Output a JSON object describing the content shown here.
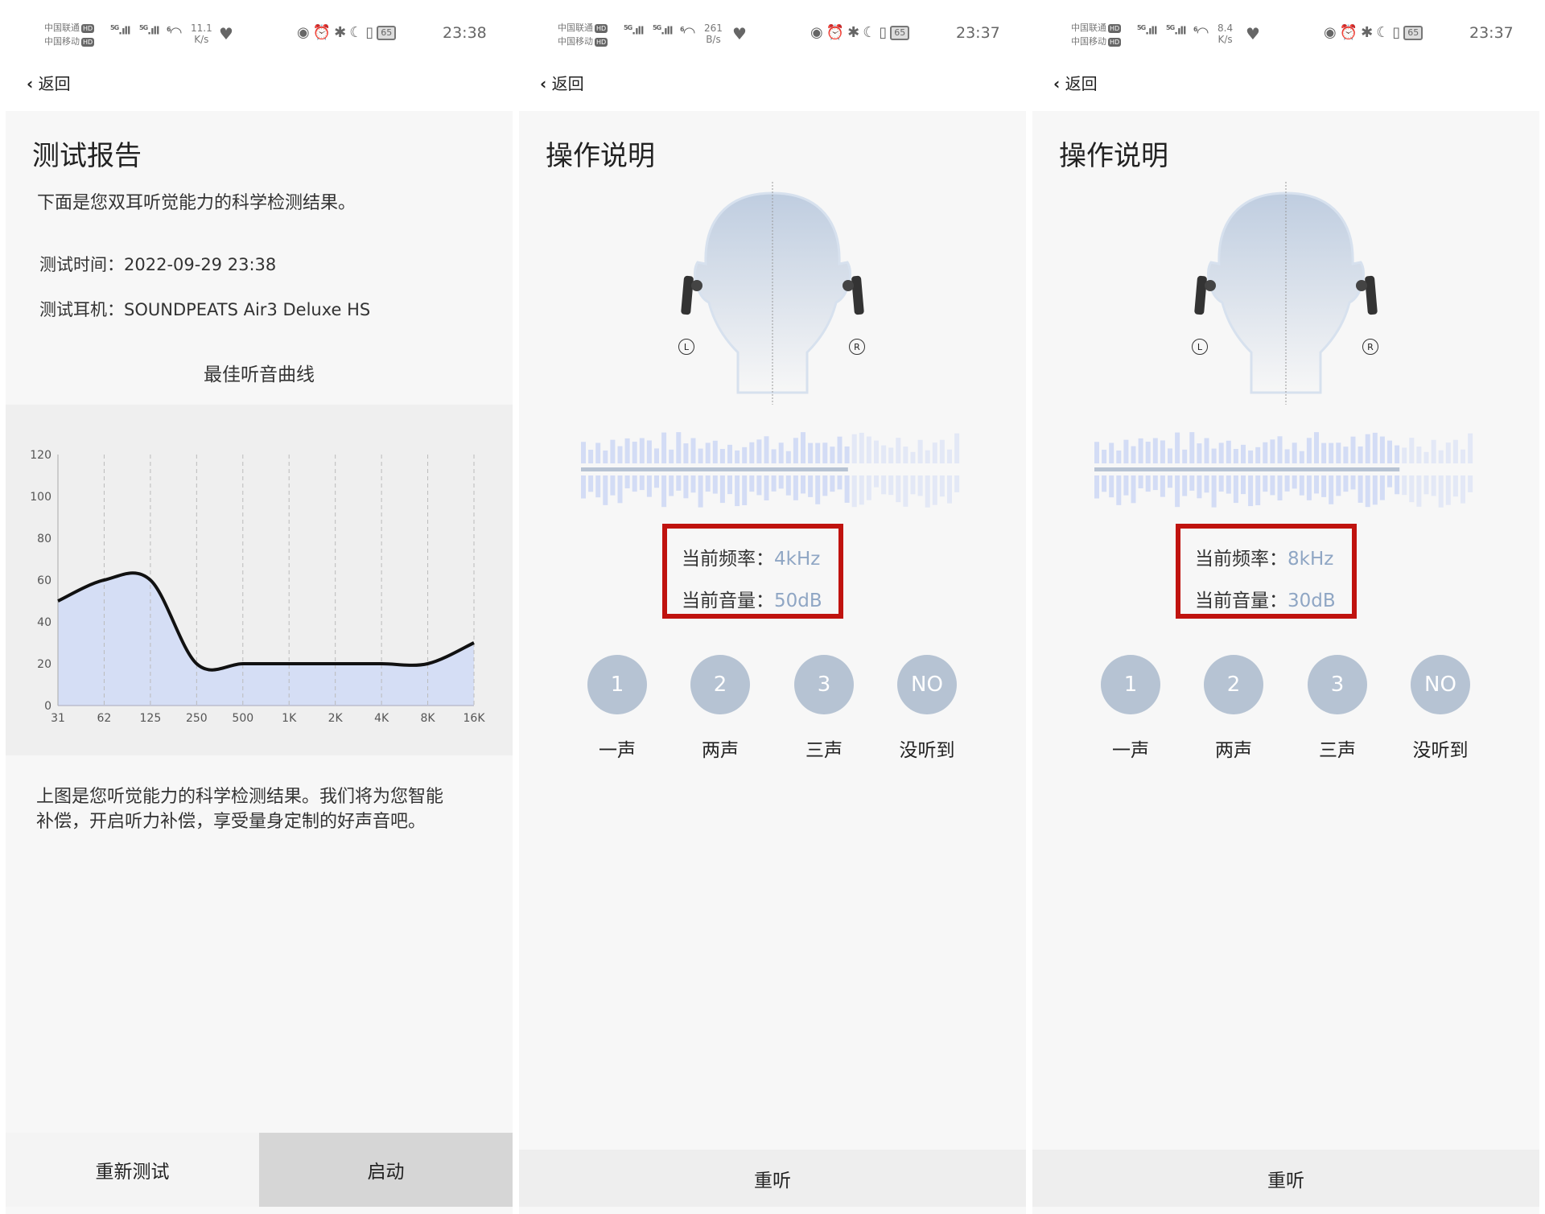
{
  "status_bars": [
    {
      "carrier1": "中国联通",
      "carrier2": "中国移动",
      "hd": "HD",
      "net1": "5G",
      "net2": "5G",
      "wifi": "6",
      "speed_value": "11.1",
      "speed_unit": "K/s",
      "battery": "65",
      "time": "23:38"
    },
    {
      "carrier1": "中国联通",
      "carrier2": "中国移动",
      "hd": "HD",
      "net1": "5G",
      "net2": "5G",
      "wifi": "6",
      "speed_value": "261",
      "speed_unit": "B/s",
      "battery": "65",
      "time": "23:37"
    },
    {
      "carrier1": "中国联通",
      "carrier2": "中国移动",
      "hd": "HD",
      "net1": "5G",
      "net2": "5G",
      "wifi": "6",
      "speed_value": "8.4",
      "speed_unit": "K/s",
      "battery": "65",
      "time": "23:37"
    }
  ],
  "back_label": "返回",
  "report": {
    "title": "测试报告",
    "subtitle": "下面是您双耳听觉能力的科学检测结果。",
    "test_time": "测试时间：2022-09-29 23:38",
    "test_earphone": "测试耳机：SOUNDPEATS Air3 Deluxe HS",
    "curve_title": "最佳听音曲线",
    "description_line1": "上图是您听觉能力的科学检测结果。我们将为您智能",
    "description_line2": "补偿，开启听力补偿，享受量身定制的好声音吧。",
    "retest_label": "重新测试",
    "start_label": "启动"
  },
  "chart_data": {
    "type": "area",
    "categories": [
      "31",
      "62",
      "125",
      "250",
      "500",
      "1K",
      "2K",
      "4K",
      "8K",
      "16K"
    ],
    "values": [
      50,
      60,
      60,
      20,
      20,
      20,
      20,
      20,
      20,
      30
    ],
    "yticks": [
      "0",
      "20",
      "40",
      "60",
      "80",
      "100",
      "120"
    ],
    "ylim": [
      0,
      120
    ],
    "grid": "vertical dashed",
    "line_color": "#111111",
    "fill_color": "#d5def5"
  },
  "instructions": [
    {
      "title": "操作说明",
      "freq_label": "当前频率：",
      "freq_value": "4kHz",
      "vol_label": "当前音量：",
      "vol_value": "50dB",
      "progress": 0.7,
      "replay_label": "重听"
    },
    {
      "title": "操作说明",
      "freq_label": "当前频率：",
      "freq_value": "8kHz",
      "vol_label": "当前音量：",
      "vol_value": "30dB",
      "progress": 0.8,
      "replay_label": "重听"
    }
  ],
  "answers": [
    {
      "key": "1",
      "label": "一声"
    },
    {
      "key": "2",
      "label": "两声"
    },
    {
      "key": "3",
      "label": "三声"
    },
    {
      "key": "NO",
      "label": "没听到"
    }
  ],
  "ear_labels": {
    "left": "L",
    "right": "R"
  },
  "colors": {
    "highlight_box": "#c0130f",
    "value_text": "#8fa6c4",
    "answer_circle": "#b6c3d3"
  }
}
